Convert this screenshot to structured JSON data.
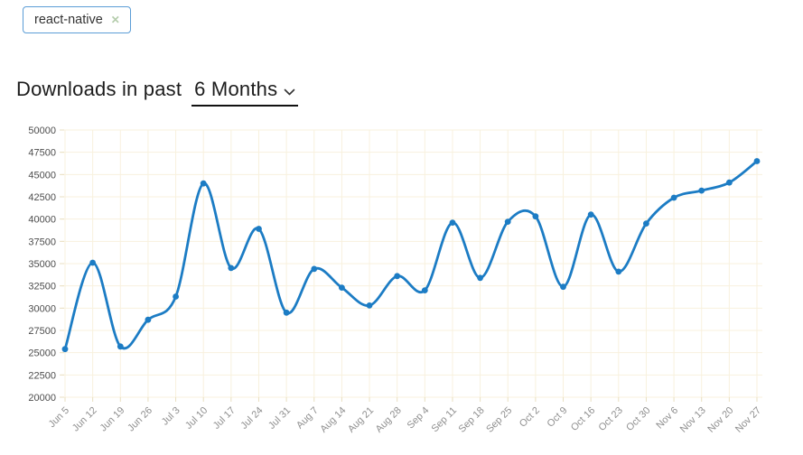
{
  "chip": {
    "label": "react-native",
    "remove_icon": "✕",
    "border_color": "#5b9dd6",
    "remove_color": "#b5cdad"
  },
  "header": {
    "title_prefix": "Downloads in past",
    "period_label": "6 Months"
  },
  "chart_data": {
    "type": "line",
    "title": "Downloads in past 6 Months",
    "xlabel": "",
    "ylabel": "",
    "categories": [
      "Jun 5",
      "Jun 12",
      "Jun 19",
      "Jun 26",
      "Jul 3",
      "Jul 10",
      "Jul 17",
      "Jul 24",
      "Jul 31",
      "Aug 7",
      "Aug 14",
      "Aug 21",
      "Aug 28",
      "Sep 4",
      "Sep 11",
      "Sep 18",
      "Sep 25",
      "Oct 2",
      "Oct 9",
      "Oct 16",
      "Oct 23",
      "Oct 30",
      "Nov 6",
      "Nov 13",
      "Nov 20",
      "Nov 27"
    ],
    "series": [
      {
        "name": "react-native",
        "color": "#1c7cc4",
        "values": [
          25400,
          35100,
          25700,
          28700,
          31300,
          44000,
          34500,
          38900,
          29500,
          34400,
          32300,
          30300,
          33600,
          32000,
          39600,
          33400,
          39700,
          40300,
          32400,
          40500,
          34100,
          39500,
          42400,
          43200,
          44100,
          46500
        ]
      }
    ],
    "ylim": [
      20000,
      50000
    ],
    "ytick_step": 2500,
    "grid": true,
    "grid_color": "#f8f1de",
    "tick_color": "#e9dfc0",
    "y_label_color": "#4d4d4d",
    "x_label_color": "#8f8f8f",
    "legend": "none"
  }
}
